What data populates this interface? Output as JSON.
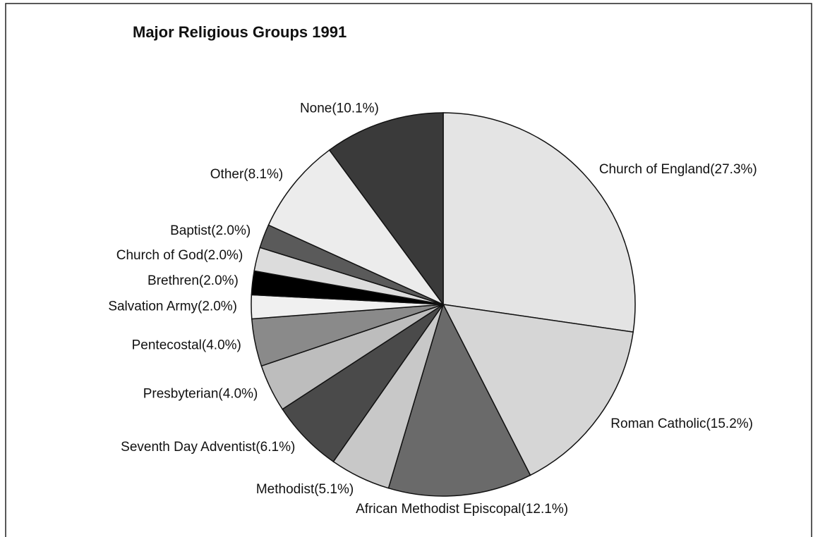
{
  "chart_data": {
    "type": "pie",
    "title": "Major Religious Groups 1991",
    "categories": [
      "Church of England",
      "Roman Catholic",
      "African Methodist Episcopal",
      "Methodist",
      "Seventh Day Adventist",
      "Presbyterian",
      "Pentecostal",
      "Salvation Army",
      "Brethren",
      "Church of God",
      "Baptist",
      "Other",
      "None"
    ],
    "values": [
      27.3,
      15.2,
      12.1,
      5.1,
      6.1,
      4.0,
      4.0,
      2.0,
      2.0,
      2.0,
      2.0,
      8.1,
      10.1
    ],
    "value_labels": [
      "(27.3%)",
      "(15.2%)",
      "(12.1%)",
      "(5.1%)",
      "(6.1%)",
      "(4.0%)",
      "(4.0%)",
      "(2.0%)",
      "(2.0%)",
      "(2.0%)",
      "(2.0%)",
      "(8.1%)",
      "(10.1%)"
    ],
    "colors": [
      "#e4e4e4",
      "#d6d6d6",
      "#6a6a6a",
      "#c8c8c8",
      "#4a4a4a",
      "#bdbdbd",
      "#8a8a8a",
      "#f0f0f0",
      "#000000",
      "#dcdcdc",
      "#5a5a5a",
      "#ececec",
      "#3a3a3a"
    ]
  }
}
